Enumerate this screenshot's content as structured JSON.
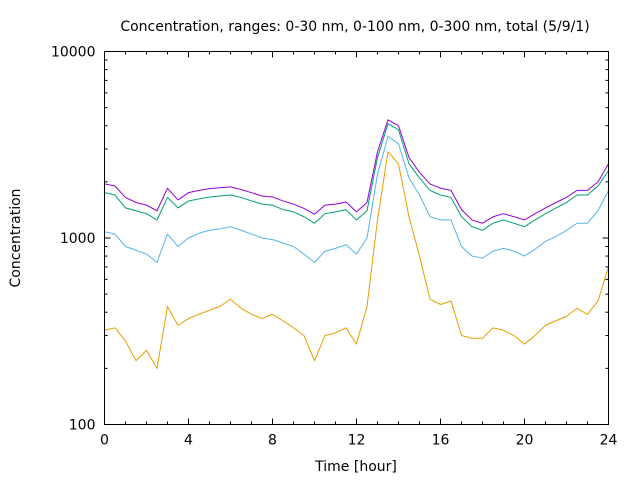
{
  "chart_data": {
    "type": "line",
    "title": "Concentration, ranges: 0-30 nm, 0-100 nm, 0-300 nm, total (5/9/1)",
    "xlabel": "Time [hour]",
    "ylabel": "Concentration",
    "xlim": [
      0,
      24
    ],
    "ylim": [
      100,
      10000
    ],
    "yscale": "log",
    "grid": false,
    "xticks": [
      0,
      4,
      8,
      12,
      16,
      20,
      24
    ],
    "xtick_labels": [
      "0",
      "4",
      "8",
      "12",
      "16",
      "20",
      "24"
    ],
    "yticks": [
      100,
      1000,
      10000
    ],
    "ytick_labels": [
      "100",
      "1000",
      "10000"
    ],
    "x": [
      0,
      0.5,
      1,
      1.5,
      2,
      2.5,
      3,
      3.5,
      4,
      4.5,
      5,
      5.5,
      6,
      6.5,
      7,
      7.5,
      8,
      8.5,
      9,
      9.5,
      10,
      10.5,
      11,
      11.5,
      12,
      12.5,
      13,
      13.5,
      14,
      14.5,
      15,
      15.5,
      16,
      16.5,
      17,
      17.5,
      18,
      18.5,
      19,
      19.5,
      20,
      20.5,
      21,
      21.5,
      22,
      22.5,
      23,
      23.5,
      24
    ],
    "series": [
      {
        "color": "#e69f00",
        "values": [
          320,
          330,
          280,
          220,
          250,
          200,
          430,
          340,
          370,
          390,
          410,
          430,
          470,
          420,
          390,
          370,
          390,
          360,
          330,
          300,
          220,
          300,
          310,
          330,
          270,
          430,
          1250,
          2900,
          2500,
          1300,
          800,
          470,
          440,
          460,
          300,
          290,
          290,
          330,
          320,
          300,
          270,
          300,
          340,
          360,
          380,
          420,
          390,
          460,
          700
        ]
      },
      {
        "color": "#56b4e9",
        "values": [
          1080,
          1050,
          900,
          860,
          820,
          740,
          1050,
          900,
          1000,
          1060,
          1100,
          1120,
          1150,
          1100,
          1050,
          1000,
          980,
          940,
          900,
          820,
          740,
          850,
          880,
          920,
          820,
          1000,
          2200,
          3500,
          3200,
          2100,
          1700,
          1300,
          1250,
          1250,
          900,
          800,
          780,
          850,
          880,
          850,
          800,
          870,
          960,
          1020,
          1100,
          1200,
          1200,
          1400,
          1800
        ]
      },
      {
        "color": "#009e73",
        "values": [
          1750,
          1700,
          1450,
          1400,
          1350,
          1250,
          1650,
          1450,
          1580,
          1620,
          1660,
          1680,
          1700,
          1650,
          1580,
          1520,
          1500,
          1420,
          1380,
          1300,
          1200,
          1350,
          1380,
          1420,
          1250,
          1400,
          2700,
          4100,
          3800,
          2500,
          2100,
          1800,
          1700,
          1650,
          1300,
          1150,
          1100,
          1200,
          1250,
          1200,
          1150,
          1250,
          1350,
          1450,
          1550,
          1700,
          1700,
          1900,
          2300
        ]
      },
      {
        "color": "#9400d3",
        "values": [
          1950,
          1900,
          1650,
          1550,
          1500,
          1400,
          1850,
          1600,
          1750,
          1800,
          1840,
          1860,
          1880,
          1820,
          1750,
          1680,
          1660,
          1580,
          1520,
          1440,
          1340,
          1500,
          1520,
          1560,
          1380,
          1550,
          2900,
          4300,
          4000,
          2700,
          2250,
          1950,
          1850,
          1800,
          1420,
          1250,
          1200,
          1300,
          1350,
          1300,
          1250,
          1350,
          1450,
          1550,
          1650,
          1800,
          1800,
          2000,
          2500
        ]
      }
    ]
  }
}
